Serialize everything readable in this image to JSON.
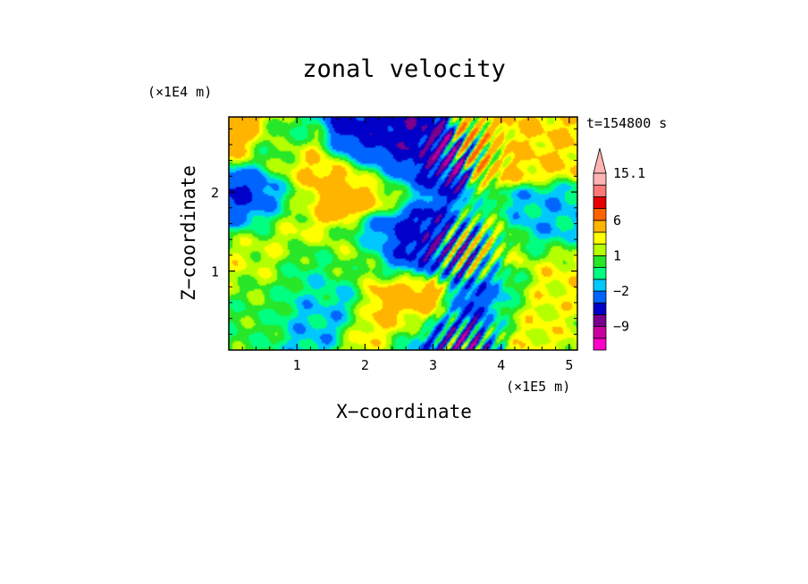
{
  "chart_data": {
    "type": "heatmap",
    "title": "zonal velocity",
    "xlabel": "X−coordinate",
    "ylabel": "Z−coordinate",
    "x_unit": "(×1E5 m)",
    "y_unit": "(×1E4 m)",
    "time_label": "t=154800 s",
    "xlim": [
      0,
      5.12
    ],
    "ylim": [
      0,
      2.95
    ],
    "x_ticks": [
      {
        "value": 1,
        "label": "1"
      },
      {
        "value": 2,
        "label": "2"
      },
      {
        "value": 3,
        "label": "3"
      },
      {
        "value": 4,
        "label": "4"
      },
      {
        "value": 5,
        "label": "5"
      }
    ],
    "y_ticks": [
      {
        "value": 1,
        "label": "1"
      },
      {
        "value": 2,
        "label": "2"
      }
    ],
    "colorbar": {
      "levels": [
        -12,
        -9,
        -6,
        -4,
        -2,
        -1,
        0,
        1,
        2,
        3,
        6,
        9,
        12,
        15.1
      ],
      "labels": [
        {
          "value": 15.1,
          "label": "15.1"
        },
        {
          "value": 6,
          "label": "6"
        },
        {
          "value": 1,
          "label": "1"
        },
        {
          "value": -2,
          "label": "−2"
        },
        {
          "value": -9,
          "label": "−9"
        }
      ],
      "colors": [
        "#ff00c8",
        "#c800a0",
        "#78008c",
        "#0000c8",
        "#0064ff",
        "#00c8ff",
        "#00ff80",
        "#28e628",
        "#b4ff00",
        "#ffff00",
        "#ffb400",
        "#ff6400",
        "#e60000",
        "#ff7878",
        "#ffb4b4"
      ]
    },
    "field_features": [
      {
        "x": 1.3,
        "z": 0.95,
        "value": 0
      },
      {
        "x": 1.4,
        "z": 0.7,
        "value": -1.5
      },
      {
        "x": 0.3,
        "z": 0.75,
        "value": 0.3
      },
      {
        "x": 0.25,
        "z": 1.3,
        "value": 1.5
      },
      {
        "x": 0.2,
        "z": 1.05,
        "value": 2.5
      },
      {
        "x": 0.15,
        "z": 2.75,
        "value": 6
      },
      {
        "x": 0.6,
        "z": 2.6,
        "value": -1.2
      },
      {
        "x": 0.8,
        "z": 1.7,
        "value": 2.5
      },
      {
        "x": 1.0,
        "z": 2.3,
        "value": 3.5
      },
      {
        "x": 2.1,
        "z": 2.55,
        "value": -5
      },
      {
        "x": 2.4,
        "z": 2.35,
        "value": -6
      },
      {
        "x": 0.45,
        "z": 1.95,
        "value": -5
      },
      {
        "x": 0.2,
        "z": 1.85,
        "value": -4
      },
      {
        "x": 1.8,
        "z": 2.05,
        "value": 5
      },
      {
        "x": 2.1,
        "z": 2.15,
        "value": 4
      },
      {
        "x": 2.7,
        "z": 1.25,
        "value": -6
      },
      {
        "x": 2.35,
        "z": 1.4,
        "value": -4
      },
      {
        "x": 2.0,
        "z": 1.2,
        "value": 2.5
      },
      {
        "x": 2.65,
        "z": 0.7,
        "value": 5
      },
      {
        "x": 2.55,
        "z": 0.35,
        "value": 3
      },
      {
        "x": 3.75,
        "z": 1.2,
        "value": 4
      },
      {
        "x": 3.85,
        "z": 0.7,
        "value": -5
      },
      {
        "x": 4.4,
        "z": 2.7,
        "value": 3
      },
      {
        "x": 4.9,
        "z": 2.75,
        "value": 3
      },
      {
        "x": 4.75,
        "z": 1.55,
        "value": -1.5
      },
      {
        "x": 4.85,
        "z": 0.5,
        "value": 2
      },
      {
        "x": 5.0,
        "z": 1.0,
        "value": 2.5
      },
      {
        "x": 4.3,
        "z": 0.6,
        "value": 3
      },
      {
        "x": 3.0,
        "z": 0.1,
        "value": -4
      },
      {
        "x": 3.55,
        "z": 1.2,
        "value": -4
      }
    ]
  }
}
